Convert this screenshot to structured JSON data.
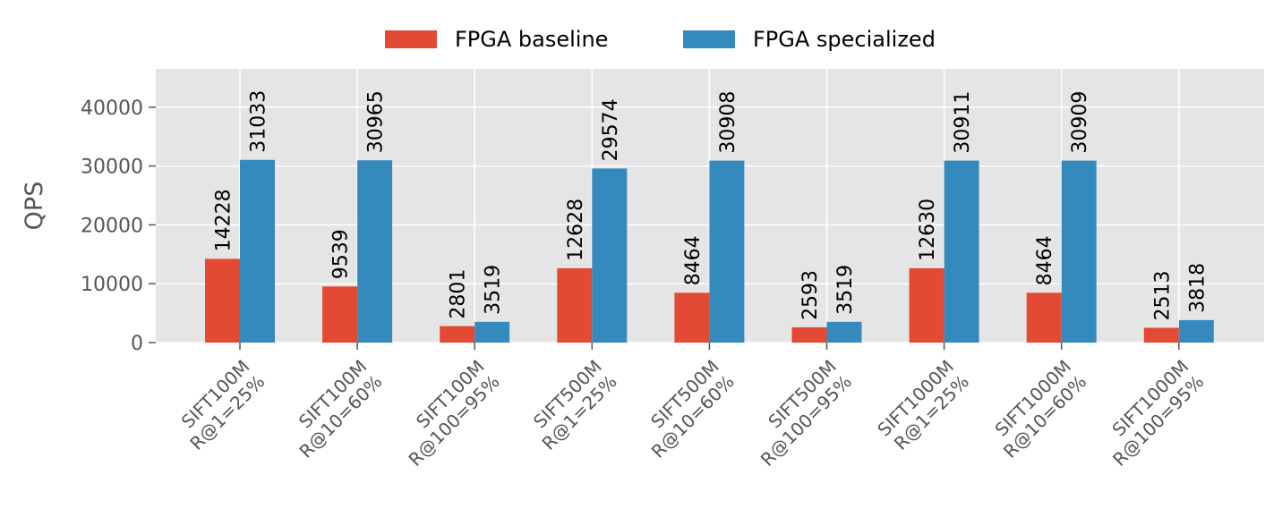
{
  "chart_data": {
    "type": "bar",
    "title": "",
    "xlabel": "",
    "ylabel": "QPS",
    "ylim": [
      0,
      46500
    ],
    "yticks": [
      0,
      10000,
      20000,
      30000,
      40000
    ],
    "grid": true,
    "legend_position": "top-center",
    "categories": [
      [
        "SIFT100M",
        "R@1=25%"
      ],
      [
        "SIFT100M",
        "R@10=60%"
      ],
      [
        "SIFT100M",
        "R@100=95%"
      ],
      [
        "SIFT500M",
        "R@1=25%"
      ],
      [
        "SIFT500M",
        "R@10=60%"
      ],
      [
        "SIFT500M",
        "R@100=95%"
      ],
      [
        "SIFT1000M",
        "R@1=25%"
      ],
      [
        "SIFT1000M",
        "R@10=60%"
      ],
      [
        "SIFT1000M",
        "R@100=95%"
      ]
    ],
    "series": [
      {
        "name": "FPGA baseline",
        "color": "#E24A33",
        "values": [
          14228,
          9539,
          2801,
          12628,
          8464,
          2593,
          12630,
          8464,
          2513
        ]
      },
      {
        "name": "FPGA specialized",
        "color": "#348ABD",
        "values": [
          31033,
          30965,
          3519,
          29574,
          30908,
          3519,
          30911,
          30909,
          3818
        ]
      }
    ],
    "colors": {
      "plot_background": "#E5E5E5",
      "grid": "#FFFFFF",
      "tick_text": "#555555"
    }
  }
}
